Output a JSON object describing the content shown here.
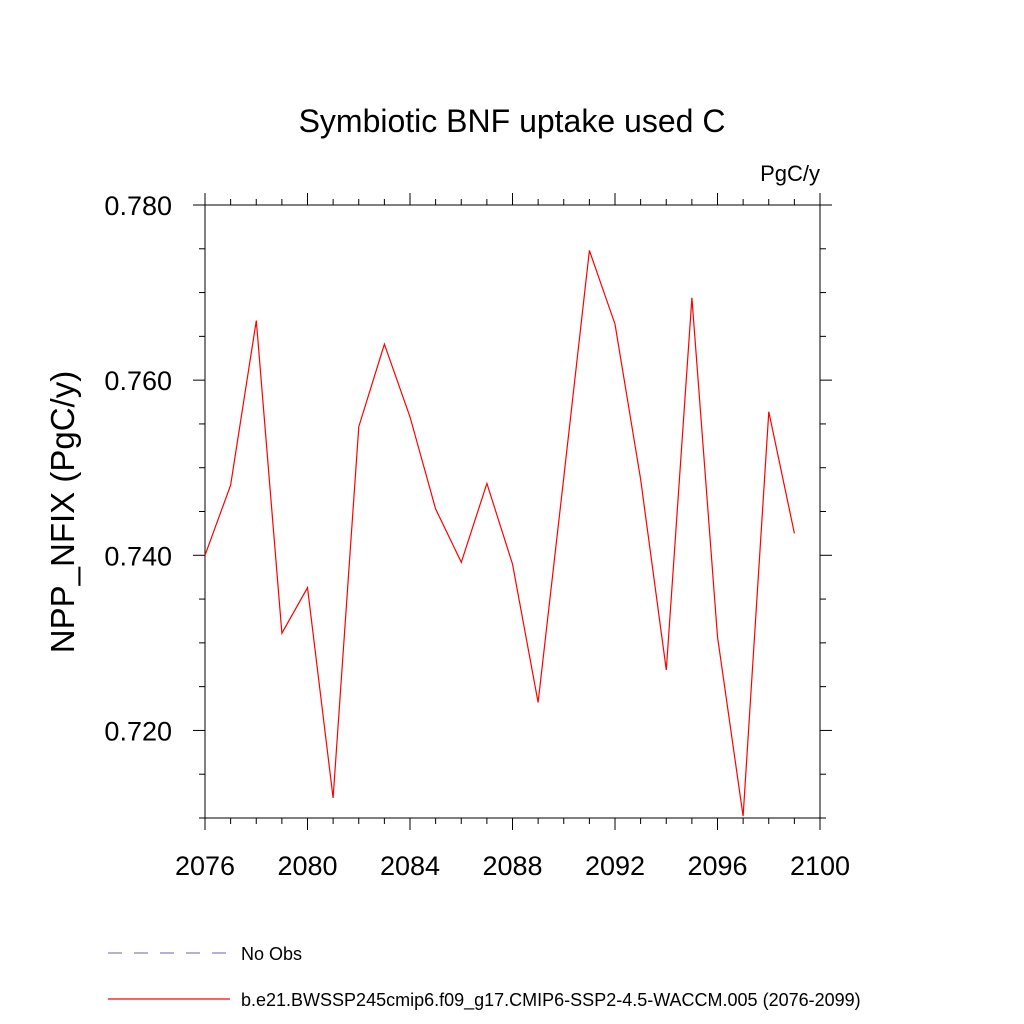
{
  "chart_data": {
    "type": "line",
    "title": "Symbiotic BNF uptake used C",
    "units": "PgC/y",
    "xlabel": "",
    "ylabel": "NPP_NFIX  (PgC/y)",
    "xlim": [
      2076,
      2100
    ],
    "ylim": [
      0.71,
      0.78
    ],
    "x_ticks": [
      2076,
      2080,
      2084,
      2088,
      2092,
      2096,
      2100
    ],
    "y_ticks": [
      0.72,
      0.74,
      0.76,
      0.78
    ],
    "y_tick_labels": [
      "0.720",
      "0.740",
      "0.760",
      "0.780"
    ],
    "grid": false,
    "series": [
      {
        "name": "b.e21.BWSSP245cmip6.f09_g17.CMIP6-SSP2-4.5-WACCM.005 (2076-2099)",
        "color": "#ff0000",
        "style": "solid",
        "x": [
          2076,
          2077,
          2078,
          2079,
          2080,
          2081,
          2082,
          2083,
          2084,
          2085,
          2086,
          2087,
          2088,
          2089,
          2090,
          2091,
          2092,
          2093,
          2094,
          2095,
          2096,
          2097,
          2098,
          2099
        ],
        "values": [
          0.74,
          0.748,
          0.7668,
          0.7311,
          0.7363,
          0.7123,
          0.7547,
          0.7641,
          0.7558,
          0.7453,
          0.7392,
          0.7482,
          0.739,
          0.7232,
          0.7489,
          0.7748,
          0.7664,
          0.7487,
          0.7269,
          0.7694,
          0.7307,
          0.7102,
          0.7564,
          0.7425
        ]
      }
    ],
    "legend": [
      {
        "label": "No Obs",
        "color": "#8a7fc4",
        "style": "dashed"
      },
      {
        "label": "b.e21.BWSSP245cmip6.f09_g17.CMIP6-SSP2-4.5-WACCM.005 (2076-2099)",
        "color": "#ff0000",
        "style": "solid"
      }
    ],
    "legend_position": "bottom-left"
  }
}
